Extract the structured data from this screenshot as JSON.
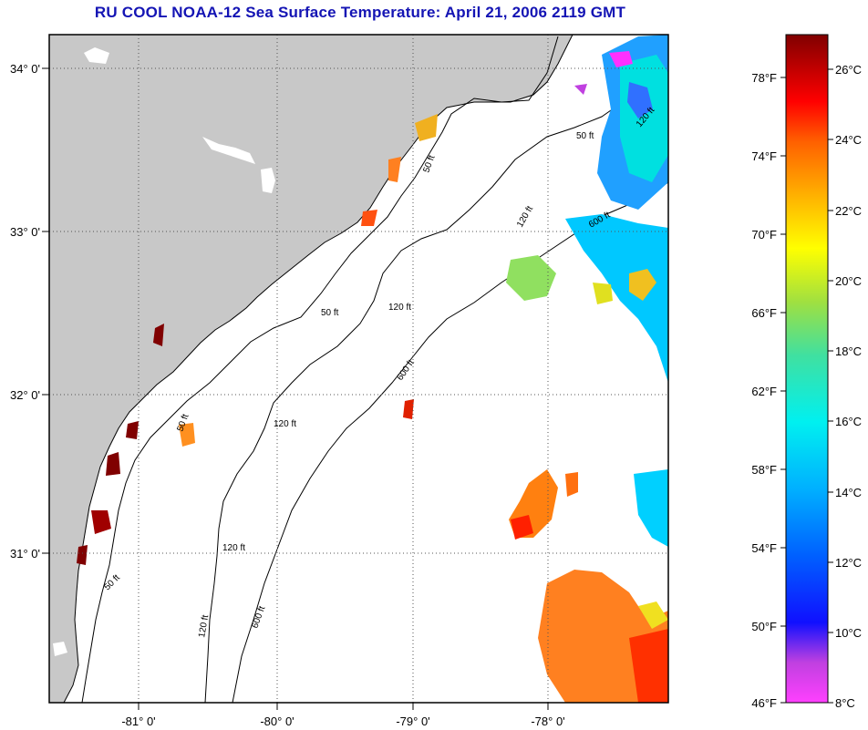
{
  "title": "RU COOL  NOAA-12  Sea Surface Temperature:  April 21, 2006 2119 GMT",
  "lat_labels": [
    "34° 0'",
    "33° 0'",
    "32° 0'",
    "31° 0'"
  ],
  "lon_labels": [
    "-81° 0'",
    "-80° 0'",
    "-79° 0'",
    "-78° 0'"
  ],
  "contour_labels": [
    "50 ft",
    "50 ft",
    "50 ft",
    "50 ft",
    "50 ft",
    "120 ft",
    "120 ft",
    "120 ft",
    "120 ft",
    "120 ft",
    "120 ft",
    "600 ft",
    "600 ft",
    "600 ft"
  ],
  "colorbar": {
    "fahrenheit": [
      "78°F",
      "74°F",
      "70°F",
      "66°F",
      "62°F",
      "58°F",
      "54°F",
      "50°F",
      "46°F"
    ],
    "celsius": [
      "26°C",
      "24°C",
      "22°C",
      "20°C",
      "18°C",
      "16°C",
      "14°C",
      "12°C",
      "10°C",
      "8°C"
    ]
  },
  "colors": {
    "title": "#1414b4",
    "land": "#c8c8c8",
    "ocean": "#ffffff"
  }
}
